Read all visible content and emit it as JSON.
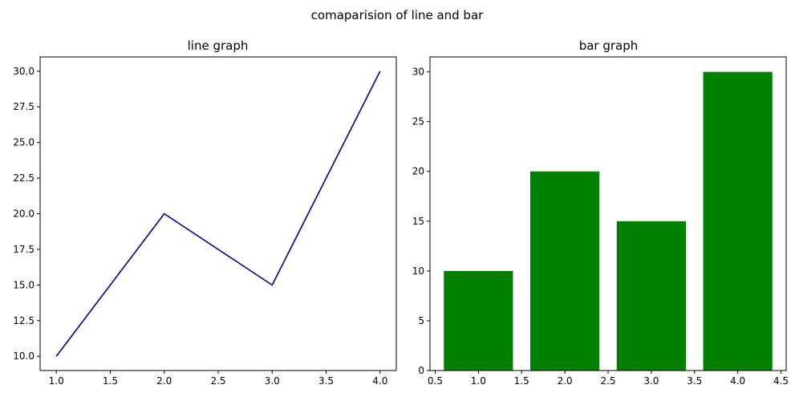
{
  "figure": {
    "suptitle": "comaparision of line and bar"
  },
  "chart_data": [
    {
      "type": "line",
      "title": "line graph",
      "x": [
        1,
        2,
        3,
        4
      ],
      "series": [
        {
          "values": [
            10,
            20,
            15,
            30
          ],
          "color": "#00008b"
        }
      ],
      "xlim": [
        0.85,
        4.15
      ],
      "ylim": [
        9.0,
        31.0
      ],
      "xticks": [
        1.0,
        1.5,
        2.0,
        2.5,
        3.0,
        3.5,
        4.0
      ],
      "yticks": [
        10.0,
        12.5,
        15.0,
        17.5,
        20.0,
        22.5,
        25.0,
        27.5,
        30.0
      ],
      "xticklabels": [
        "1.0",
        "1.5",
        "2.0",
        "2.5",
        "3.0",
        "3.5",
        "4.0"
      ],
      "yticklabels": [
        "10.0",
        "12.5",
        "15.0",
        "17.5",
        "20.0",
        "22.5",
        "25.0",
        "27.5",
        "30.0"
      ],
      "grid": false
    },
    {
      "type": "bar",
      "title": "bar graph",
      "categories": [
        1,
        2,
        3,
        4
      ],
      "values": [
        10,
        20,
        15,
        30
      ],
      "bar_width": 0.8,
      "color": "#008000",
      "xlim": [
        0.44,
        4.56
      ],
      "ylim": [
        0,
        31.5
      ],
      "xticks": [
        0.5,
        1.0,
        1.5,
        2.0,
        2.5,
        3.0,
        3.5,
        4.0,
        4.5
      ],
      "yticks": [
        0,
        5,
        10,
        15,
        20,
        25,
        30
      ],
      "xticklabels": [
        "0.5",
        "1.0",
        "1.5",
        "2.0",
        "2.5",
        "3.0",
        "3.5",
        "4.0",
        "4.5"
      ],
      "yticklabels": [
        "0",
        "5",
        "10",
        "15",
        "20",
        "25",
        "30"
      ],
      "grid": false
    }
  ]
}
